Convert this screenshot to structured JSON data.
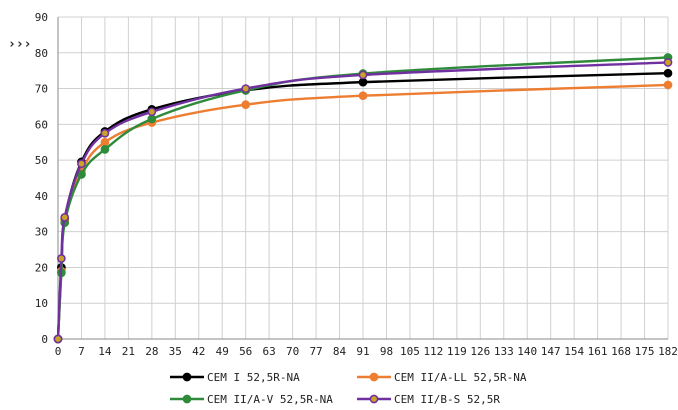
{
  "chart_data": {
    "type": "line",
    "title": "",
    "xlabel": "",
    "ylabel": "›››",
    "xlim": [
      0,
      182
    ],
    "ylim": [
      0,
      90
    ],
    "x_ticks": [
      0,
      7,
      14,
      21,
      28,
      35,
      42,
      49,
      56,
      63,
      70,
      77,
      84,
      91,
      98,
      105,
      112,
      119,
      126,
      133,
      140,
      147,
      154,
      161,
      168,
      175,
      182
    ],
    "y_ticks": [
      0,
      10,
      20,
      30,
      40,
      50,
      60,
      70,
      80,
      90
    ],
    "grid": true,
    "legend_position": "bottom",
    "x": [
      0,
      1,
      2,
      7,
      14,
      28,
      56,
      91,
      182
    ],
    "series": [
      {
        "name": "CEM I 52,5R-NA",
        "color": "#000000",
        "values": [
          0,
          20,
          33.5,
          49.5,
          58,
          64.2,
          69.5,
          71.8,
          74.3
        ]
      },
      {
        "name": "CEM II/A-LL 52,5R-NA",
        "color": "#ed7d31",
        "values": [
          0,
          19,
          33,
          47,
          55,
          60.5,
          65.5,
          68,
          71
        ]
      },
      {
        "name": "CEM II/A-V 52,5R-NA",
        "color": "#2e8b3a",
        "values": [
          0,
          18.5,
          32.5,
          46,
          53,
          61.5,
          69.5,
          74.2,
          78.7
        ]
      },
      {
        "name": "CEM II/B-S 52,5R",
        "color": "#7030a0",
        "values": [
          0,
          22.5,
          34,
          49,
          57.5,
          63.5,
          70,
          73.8,
          77.3
        ]
      }
    ]
  }
}
